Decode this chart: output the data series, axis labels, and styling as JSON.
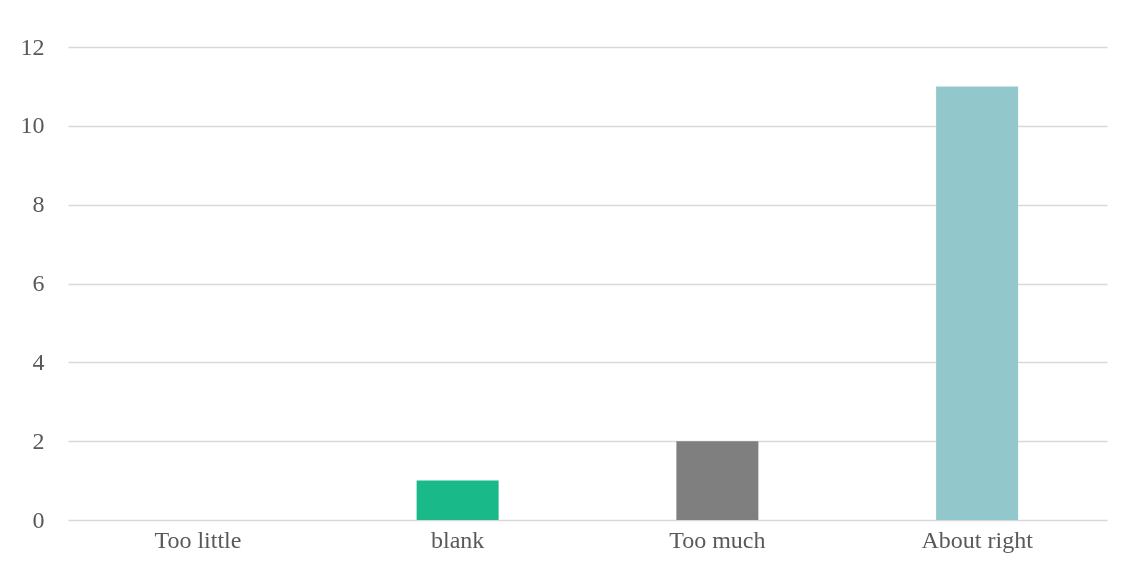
{
  "chart_data": {
    "type": "bar",
    "categories": [
      "Too little",
      "blank",
      "Too much",
      "About right"
    ],
    "values": [
      0,
      1,
      2,
      11
    ],
    "colors": [
      "#4472c4",
      "#1ab98a",
      "#7f7f7f",
      "#92c7cb"
    ],
    "ylim": [
      0,
      12
    ],
    "yticks": [
      0,
      2,
      4,
      6,
      8,
      10,
      12
    ],
    "grid": "y",
    "legend": false
  }
}
